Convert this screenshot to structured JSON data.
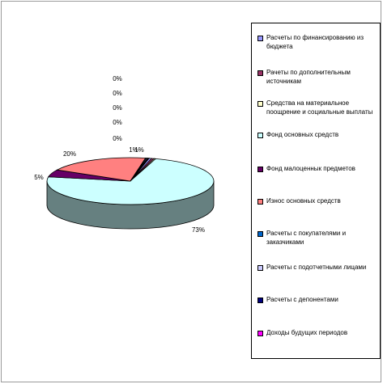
{
  "chart_data": {
    "type": "pie",
    "categories": [
      "Расчеты по финансированию из бюджета",
      "Рачеты по дополнительным источникам",
      "Средства на материальное поощрение и социальные выплаты",
      "Фонд основных средств",
      "Фонд малоценнык предметов",
      "Износ основных средств",
      "Расчеты с покупателями и заказчиками",
      "Расчеты с подотчетными лицами",
      "Расчеты с депонентами",
      "Доходы будущих периодов"
    ],
    "values": [
      0.5,
      0.5,
      0.3,
      73,
      5,
      20,
      0.2,
      0.2,
      0.2,
      0.1
    ],
    "data_labels": [
      "1%",
      "1%",
      "0%",
      "73%",
      "5%",
      "20%",
      "0%",
      "0%",
      "0%",
      "0%"
    ],
    "colors": [
      "#9999ff",
      "#993366",
      "#ffffcc",
      "#ccffff",
      "#660066",
      "#ff8080",
      "#0066cc",
      "#ccccff",
      "#000080",
      "#ff00ff"
    ],
    "legend_position": "right",
    "style": "3d"
  }
}
